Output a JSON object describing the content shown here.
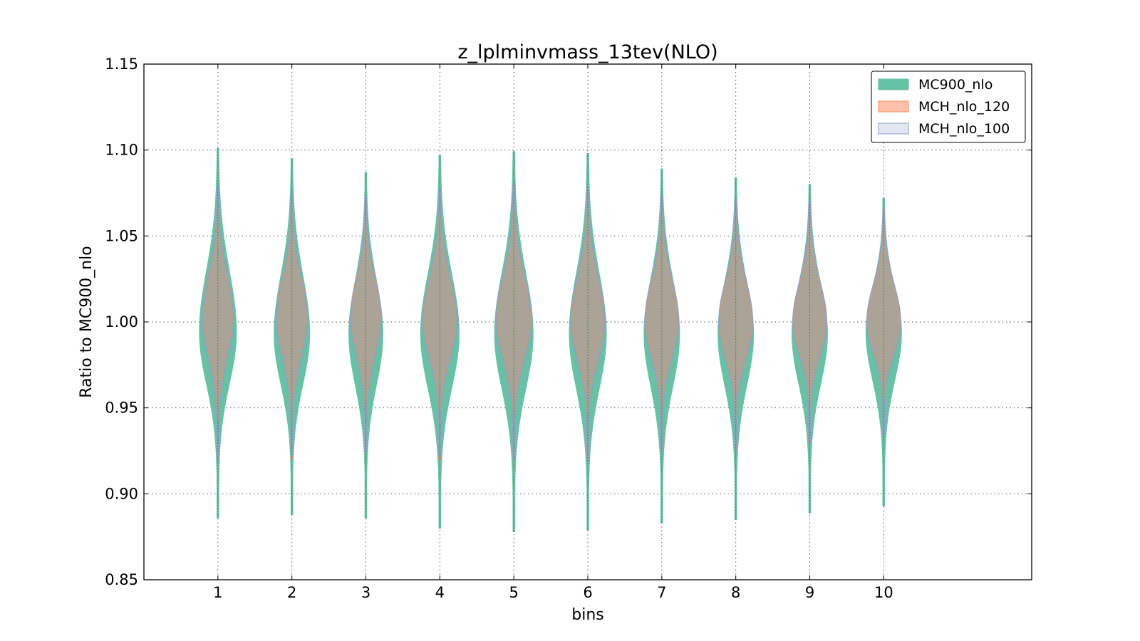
{
  "chart_data": {
    "type": "violin",
    "title": "z_lplminvmass_13tev(NLO)",
    "xlabel": "bins",
    "ylabel": "Ratio to MC900_nlo",
    "categories": [
      "1",
      "2",
      "3",
      "4",
      "5",
      "6",
      "7",
      "8",
      "9",
      "10"
    ],
    "x": [
      1,
      2,
      3,
      4,
      5,
      6,
      7,
      8,
      9,
      10
    ],
    "xlim": [
      0,
      12
    ],
    "ylim": [
      0.85,
      1.15
    ],
    "yticks": [
      "0.85",
      "0.90",
      "0.95",
      "1.00",
      "1.05",
      "1.10",
      "1.15"
    ],
    "grid": true,
    "legend_position": "top-right",
    "series": [
      {
        "name": "MC900_nlo",
        "color": "#66c2a5",
        "min": [
          0.886,
          0.888,
          0.886,
          0.88,
          0.878,
          0.879,
          0.883,
          0.885,
          0.889,
          0.893
        ],
        "max": [
          1.101,
          1.095,
          1.087,
          1.097,
          1.099,
          1.098,
          1.089,
          1.084,
          1.08,
          1.072
        ],
        "center": [
          0.994,
          0.993,
          0.993,
          0.993,
          0.993,
          0.993,
          0.993,
          0.993,
          0.993,
          0.994
        ],
        "max_halfwidth": [
          0.25,
          0.24,
          0.23,
          0.26,
          0.26,
          0.25,
          0.24,
          0.24,
          0.24,
          0.24
        ]
      },
      {
        "name": "MCH_nlo_120",
        "color": "#fc8d62",
        "min": [
          0.92,
          0.92,
          0.925,
          0.92,
          0.92,
          0.92,
          0.925,
          0.925,
          0.93,
          0.935
        ],
        "max": [
          1.075,
          1.072,
          1.07,
          1.075,
          1.078,
          1.075,
          1.072,
          1.07,
          1.068,
          1.065
        ],
        "center": [
          1.005,
          1.005,
          1.005,
          1.003,
          1.003,
          1.002,
          1.002,
          1.001,
          1.001,
          1.001
        ],
        "max_halfwidth": [
          0.2,
          0.2,
          0.2,
          0.22,
          0.23,
          0.22,
          0.22,
          0.22,
          0.22,
          0.22
        ]
      },
      {
        "name": "MCH_nlo_100",
        "color": "#8da0cb",
        "min": [
          0.92,
          0.922,
          0.925,
          0.922,
          0.92,
          0.92,
          0.925,
          0.925,
          0.93,
          0.935
        ],
        "max": [
          1.078,
          1.075,
          1.072,
          1.077,
          1.08,
          1.078,
          1.074,
          1.072,
          1.07,
          1.066
        ],
        "center": [
          1.0,
          1.0,
          1.0,
          1.0,
          1.0,
          1.0,
          1.0,
          1.0,
          1.0,
          1.0
        ],
        "max_halfwidth": [
          0.21,
          0.21,
          0.21,
          0.23,
          0.24,
          0.23,
          0.23,
          0.23,
          0.23,
          0.23
        ]
      }
    ]
  }
}
